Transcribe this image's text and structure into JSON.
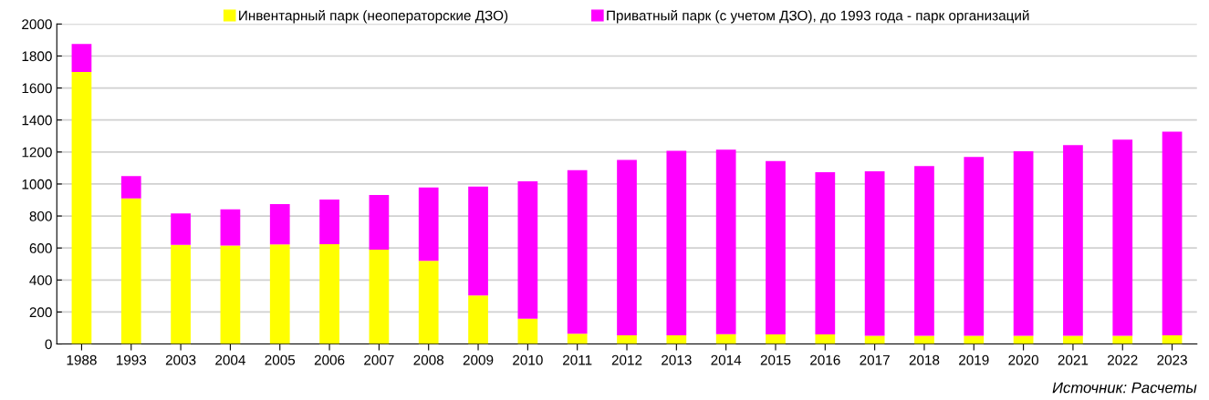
{
  "chart_data": {
    "type": "bar",
    "stacked": true,
    "categories": [
      "1988",
      "1993",
      "2003",
      "2004",
      "2005",
      "2006",
      "2007",
      "2008",
      "2009",
      "2010",
      "2011",
      "2012",
      "2013",
      "2014",
      "2015",
      "2016",
      "2017",
      "2018",
      "2019",
      "2020",
      "2021",
      "2022",
      "2023"
    ],
    "series": [
      {
        "name": "Инвентарный парк (неоператорские ДЗО)",
        "color": "#ffff00",
        "values": [
          1700,
          910,
          620,
          615,
          622,
          624,
          589,
          520,
          303,
          158,
          64,
          55,
          55,
          62,
          60,
          60,
          52,
          52,
          52,
          52,
          52,
          52,
          55
        ]
      },
      {
        "name": "Приватный парк (с учетом ДЗО), до 1993 года - парк организаций",
        "color": "#ff00ff",
        "values": [
          175,
          140,
          196,
          227,
          253,
          279,
          343,
          459,
          681,
          859,
          1022,
          1095,
          1153,
          1153,
          1083,
          1014,
          1027,
          1060,
          1117,
          1153,
          1191,
          1225,
          1272
        ]
      }
    ],
    "ylim": [
      0,
      2000
    ],
    "yticks": [
      0,
      200,
      400,
      600,
      800,
      1000,
      1200,
      1400,
      1600,
      1800,
      2000
    ],
    "grid": "y",
    "legend": "top",
    "annotations": [
      "Источник: Расчеты"
    ]
  }
}
